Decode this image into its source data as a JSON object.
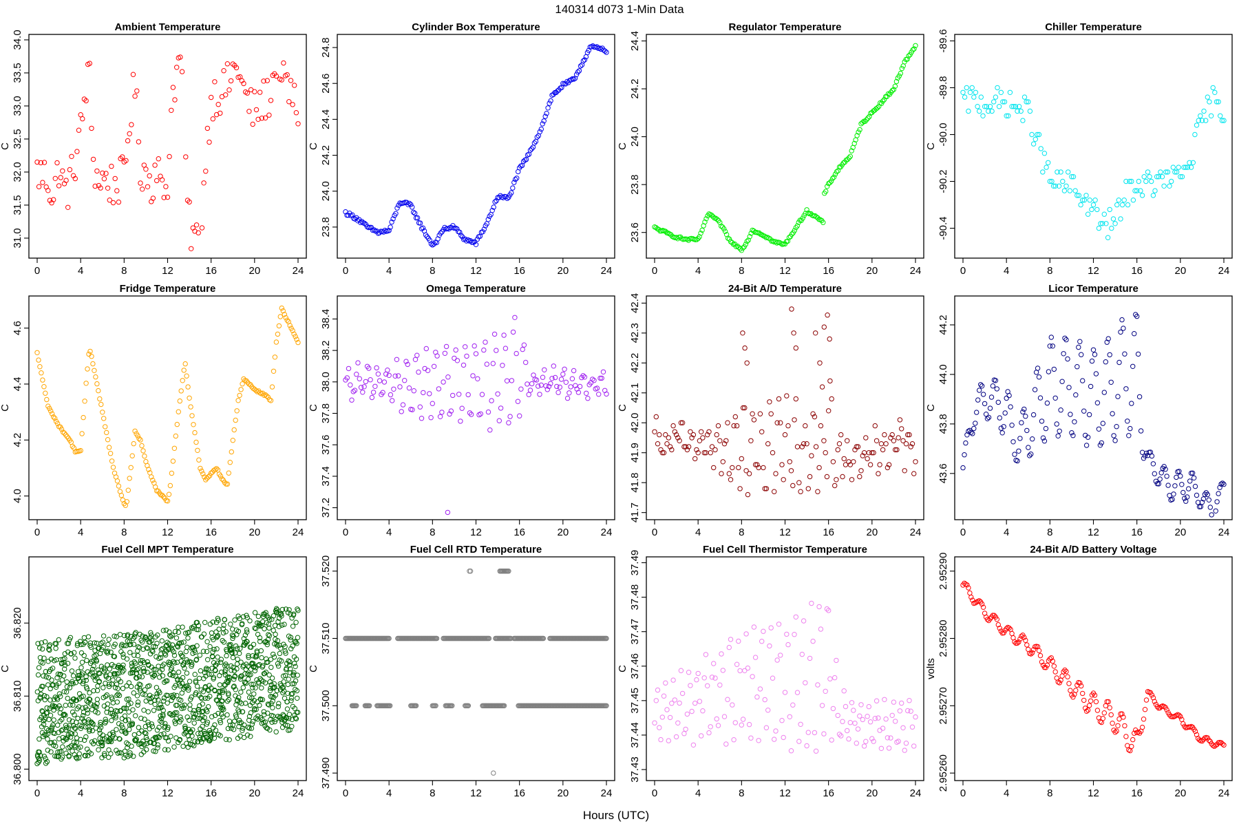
{
  "figure": {
    "title": "140314   d073   1-Min Data",
    "xlabel": "Hours (UTC)"
  },
  "chart_data": [
    {
      "type": "scatter",
      "title": "Ambient Temperature",
      "ylabel": "C",
      "color": "#ff0000",
      "xlim": [
        0,
        24
      ],
      "ylim": [
        30.76,
        34.02
      ],
      "xticks": [
        0,
        4,
        8,
        12,
        16,
        20,
        24
      ],
      "yticks": [
        31.0,
        31.5,
        32.0,
        32.5,
        33.0,
        33.5,
        34.0
      ],
      "ytick_labels": [
        "31.0",
        "31.5",
        "32.0",
        "32.5",
        "33.0",
        "33.5",
        "34.0"
      ],
      "x": [
        0,
        1,
        1.5,
        2,
        2.5,
        3,
        3.5,
        4,
        4.5,
        4.8,
        5.1,
        5.5,
        6,
        7,
        8,
        8.5,
        9,
        9.5,
        10,
        10.5,
        11,
        11.5,
        12,
        12.5,
        13,
        13.5,
        13.7,
        14,
        14.5,
        15,
        15.5,
        16,
        16.5,
        17,
        17.5,
        18,
        18.5,
        19,
        19.5,
        20,
        20.5,
        21,
        21.5,
        22,
        22.3,
        22.5,
        23,
        23.5,
        24
      ],
      "y": [
        32.0,
        31.9,
        31.6,
        32.1,
        31.7,
        31.8,
        32.2,
        32.6,
        33.3,
        33.5,
        32.3,
        31.9,
        31.9,
        31.8,
        31.9,
        32.8,
        33.3,
        32.1,
        32.0,
        31.8,
        32.2,
        31.6,
        31.9,
        33.3,
        33.6,
        33.7,
        31.8,
        31.2,
        31.0,
        30.9,
        32.2,
        33.1,
        33.2,
        33.2,
        33.3,
        33.5,
        33.6,
        33.2,
        33.0,
        32.9,
        33.0,
        33.1,
        33.2,
        33.7,
        33.8,
        33.3,
        33.3,
        33.1,
        32.9
      ],
      "noise": 0.35,
      "density": 6
    },
    {
      "type": "scatter",
      "title": "Cylinder Box Temperature",
      "ylabel": "C",
      "color": "#0000ee",
      "xlim": [
        0,
        24
      ],
      "ylim": [
        23.65,
        24.85
      ],
      "xticks": [
        0,
        4,
        8,
        12,
        16,
        20,
        24
      ],
      "yticks": [
        23.8,
        24.0,
        24.2,
        24.4,
        24.6,
        24.8
      ],
      "ytick_labels": [
        "23.8",
        "24.0",
        "24.2",
        "24.4",
        "24.6",
        "24.8"
      ],
      "x": [
        0,
        1,
        2,
        3,
        4,
        5,
        6,
        7,
        8,
        8.5,
        9,
        10,
        11,
        12,
        13,
        14,
        15,
        16,
        17,
        18,
        19,
        20,
        21,
        22,
        22.5,
        23,
        24
      ],
      "y": [
        23.88,
        23.85,
        23.8,
        23.77,
        23.78,
        23.94,
        23.92,
        23.8,
        23.7,
        23.73,
        23.79,
        23.8,
        23.73,
        23.71,
        23.82,
        23.97,
        23.96,
        24.12,
        24.22,
        24.35,
        24.53,
        24.59,
        24.62,
        24.74,
        24.8,
        24.8,
        24.78
      ],
      "noise": 0.01,
      "density": 8
    },
    {
      "type": "scatter",
      "title": "Regulator Temperature",
      "ylabel": "C",
      "color": "#00ee00",
      "xlim": [
        0,
        24
      ],
      "ylim": [
        23.51,
        24.41
      ],
      "xticks": [
        0,
        4,
        8,
        12,
        16,
        20,
        24
      ],
      "yticks": [
        23.6,
        23.8,
        24.0,
        24.2,
        24.4
      ],
      "ytick_labels": [
        "23.6",
        "23.8",
        "24.0",
        "24.2",
        "24.4"
      ],
      "x": [
        0,
        1,
        2,
        3,
        4,
        5,
        6,
        7,
        8,
        8.5,
        9,
        10,
        11,
        12,
        13,
        14,
        15,
        15.5,
        15.6,
        16,
        17,
        18,
        19,
        20,
        21,
        22,
        23,
        24
      ],
      "y": [
        23.62,
        23.6,
        23.58,
        23.57,
        23.57,
        23.68,
        23.64,
        23.56,
        23.53,
        23.56,
        23.61,
        23.59,
        23.56,
        23.55,
        23.62,
        23.69,
        23.66,
        23.64,
        23.76,
        23.8,
        23.87,
        23.92,
        24.05,
        24.1,
        24.15,
        24.2,
        24.31,
        24.38
      ],
      "noise": 0.005,
      "density": 8
    },
    {
      "type": "scatter",
      "title": "Chiller Temperature",
      "ylabel": "C",
      "color": "#00e5ee",
      "xlim": [
        0,
        24
      ],
      "ylim": [
        -90.51,
        -89.59
      ],
      "xticks": [
        0,
        4,
        8,
        12,
        16,
        20,
        24
      ],
      "yticks": [
        -90.4,
        -90.2,
        -90.0,
        -89.8,
        -89.6
      ],
      "ytick_labels": [
        "-90.4",
        "-90.2",
        "-90.0",
        "-89.8",
        "-89.6"
      ],
      "x": [
        0,
        2,
        4,
        6,
        7,
        8,
        10,
        12,
        13,
        14,
        15,
        16,
        18,
        20,
        21,
        22,
        23,
        24
      ],
      "y": [
        -89.85,
        -89.86,
        -89.87,
        -89.9,
        -90.05,
        -90.2,
        -90.22,
        -90.32,
        -90.4,
        -90.37,
        -90.25,
        -90.22,
        -90.2,
        -90.18,
        -90.1,
        -89.95,
        -89.85,
        -89.92
      ],
      "noise": 0.06,
      "density": 6,
      "quantum": 0.02
    },
    {
      "type": "scatter",
      "title": "Fridge Temperature",
      "ylabel": "C",
      "color": "#ffa500",
      "xlim": [
        0,
        24
      ],
      "ylim": [
        3.93,
        4.7
      ],
      "xticks": [
        0,
        4,
        8,
        12,
        16,
        20,
        24
      ],
      "yticks": [
        4.0,
        4.2,
        4.4,
        4.6
      ],
      "ytick_labels": [
        "4.0",
        "4.2",
        "4.4",
        "4.6"
      ],
      "x": [
        0,
        1,
        2,
        3,
        3.5,
        4,
        4.5,
        4.8,
        5,
        6,
        7,
        8,
        8.2,
        9,
        9.5,
        10,
        11,
        12,
        12.2,
        13,
        13.6,
        14,
        15,
        15.5,
        16,
        16.5,
        17,
        17.5,
        18,
        18.5,
        19,
        20,
        21,
        21.5,
        22,
        22.5,
        23,
        24
      ],
      "y": [
        4.51,
        4.32,
        4.25,
        4.2,
        4.16,
        4.16,
        4.4,
        4.53,
        4.5,
        4.3,
        4.1,
        3.97,
        3.96,
        4.23,
        4.2,
        4.12,
        4.02,
        3.98,
        4.02,
        4.3,
        4.48,
        4.35,
        4.1,
        4.06,
        4.08,
        4.1,
        4.06,
        4.04,
        4.2,
        4.34,
        4.42,
        4.38,
        4.36,
        4.34,
        4.55,
        4.67,
        4.63,
        4.55
      ],
      "noise": 0.003,
      "density": 8
    },
    {
      "type": "scatter",
      "title": "Omega Temperature",
      "ylabel": "C",
      "color": "#a020f0",
      "xlim": [
        0,
        24
      ],
      "ylim": [
        37.15,
        38.52
      ],
      "xticks": [
        0,
        4,
        8,
        12,
        16,
        20,
        24
      ],
      "yticks": [
        37.2,
        37.4,
        37.6,
        37.8,
        38.0,
        38.2,
        38.4
      ],
      "ytick_labels": [
        "37.2",
        "37.4",
        "37.6",
        "37.8",
        "38.0",
        "38.2",
        "38.4"
      ],
      "x": [
        0,
        2,
        4,
        6,
        8,
        10,
        12,
        14,
        15,
        15.5,
        16,
        17,
        20,
        24
      ],
      "y": [
        37.98,
        38.0,
        38.0,
        37.98,
        38.0,
        38.0,
        38.0,
        38.02,
        38.0,
        38.1,
        38.1,
        38.0,
        38.0,
        37.98
      ],
      "noise": 0.04,
      "density": 7,
      "oscillation": {
        "period": 0.9,
        "amp": [
          0.08,
          0.1,
          0.1,
          0.18,
          0.22,
          0.22,
          0.25,
          0.3,
          0.3,
          0.35,
          0.3,
          0.06,
          0.07,
          0.06
        ]
      },
      "outliers": {
        "x": [
          9.4
        ],
        "y": [
          37.17
        ]
      }
    },
    {
      "type": "scatter",
      "title": "24-Bit A/D Temperature",
      "ylabel": "C",
      "color": "#8b0000",
      "xlim": [
        0,
        24
      ],
      "ylim": [
        41.69,
        42.41
      ],
      "xticks": [
        0,
        4,
        8,
        12,
        16,
        20,
        24
      ],
      "yticks": [
        41.7,
        41.8,
        41.9,
        42.0,
        42.1,
        42.2,
        42.3,
        42.4
      ],
      "ytick_labels": [
        "41.7",
        "41.8",
        "41.9",
        "42.0",
        "42.1",
        "42.2",
        "42.3",
        "42.4"
      ],
      "x": [
        0,
        2,
        4,
        6,
        8,
        10,
        12,
        14,
        16,
        17,
        20,
        24
      ],
      "y": [
        41.92,
        41.94,
        41.94,
        41.9,
        41.92,
        41.9,
        41.92,
        41.9,
        41.98,
        41.88,
        41.9,
        41.92
      ],
      "noise": 0.06,
      "density": 7,
      "quantum": 0.01,
      "oscillation": {
        "period": 0.8,
        "amp": [
          0.04,
          0.05,
          0.05,
          0.08,
          0.12,
          0.1,
          0.14,
          0.1,
          0.16,
          0.05,
          0.06,
          0.05
        ]
      },
      "outliers": {
        "x": [
          8.1,
          8.3,
          8.5,
          12.6,
          12.8,
          13.0,
          14.8,
          15.2,
          15.6,
          15.9,
          16.1
        ],
        "y": [
          42.3,
          42.25,
          42.2,
          42.38,
          42.3,
          42.25,
          42.3,
          42.2,
          42.32,
          42.36,
          42.28
        ]
      }
    },
    {
      "type": "scatter",
      "title": "Licor Temperature",
      "ylabel": "C",
      "color": "#000080",
      "xlim": [
        0,
        24
      ],
      "ylim": [
        43.43,
        44.3
      ],
      "xticks": [
        0,
        4,
        8,
        12,
        16,
        20,
        24
      ],
      "yticks": [
        43.6,
        43.8,
        44.0,
        44.2
      ],
      "ytick_labels": [
        "43.6",
        "43.8",
        "44.0",
        "44.2"
      ],
      "x": [
        0,
        1,
        2,
        3,
        4,
        5,
        6,
        8,
        10,
        12,
        14,
        15,
        16,
        17,
        18,
        19,
        20,
        21,
        22,
        23,
        24
      ],
      "y": [
        43.62,
        43.85,
        43.9,
        43.9,
        43.85,
        43.7,
        43.8,
        43.95,
        43.95,
        43.9,
        43.95,
        44.0,
        44.0,
        43.65,
        43.6,
        43.55,
        43.55,
        43.55,
        43.5,
        43.45,
        43.55
      ],
      "noise": 0.003,
      "density": 8,
      "oscillation": {
        "period": 1.3,
        "amp": [
          0.04,
          0.07,
          0.08,
          0.08,
          0.12,
          0.06,
          0.14,
          0.2,
          0.2,
          0.2,
          0.22,
          0.25,
          0.25,
          0.05,
          0.05,
          0.06,
          0.06,
          0.06,
          0.04,
          0.04,
          0.03
        ]
      }
    },
    {
      "type": "scatter",
      "title": "Fuel Cell MPT Temperature",
      "ylabel": "C",
      "color": "#006400",
      "xlim": [
        0,
        24
      ],
      "ylim": [
        36.799,
        36.8285
      ],
      "xticks": [
        0,
        4,
        8,
        12,
        16,
        20,
        24
      ],
      "yticks": [
        36.8,
        36.81,
        36.82
      ],
      "ytick_labels": [
        "36.800",
        "36.810",
        "36.820"
      ],
      "x": [
        0,
        4,
        8,
        12,
        16,
        20,
        24
      ],
      "y": [
        36.809,
        36.81,
        36.81,
        36.811,
        36.812,
        36.813,
        36.814
      ],
      "noise": 0.0085,
      "density": 60
    },
    {
      "type": "scatter",
      "title": "Fuel Cell RTD Temperature",
      "ylabel": "C",
      "color": "#808080",
      "xlim": [
        0,
        24
      ],
      "ylim": [
        37.4895,
        37.5215
      ],
      "xticks": [
        0,
        4,
        8,
        12,
        16,
        20,
        24
      ],
      "yticks": [
        37.49,
        37.5,
        37.51,
        37.52
      ],
      "ytick_labels": [
        "37.490",
        "37.500",
        "37.510",
        "37.520"
      ],
      "levels": [
        37.5,
        37.51
      ],
      "level_runs": [
        {
          "y": 37.51,
          "segments": [
            [
              0,
              4
            ],
            [
              4.8,
              8.4
            ],
            [
              9.0,
              13.2
            ],
            [
              13.8,
              15.2
            ],
            [
              15.5,
              18.2
            ],
            [
              18.8,
              24
            ]
          ]
        },
        {
          "y": 37.5,
          "segments": [
            [
              0.6,
              1.0
            ],
            [
              1.8,
              2.2
            ],
            [
              2.9,
              4.1
            ],
            [
              6.0,
              6.5
            ],
            [
              8.0,
              8.3
            ],
            [
              9.2,
              9.8
            ],
            [
              11.0,
              11.3
            ],
            [
              12.6,
              14.6
            ],
            [
              15.9,
              24
            ]
          ]
        },
        {
          "y": 37.52,
          "segments": [
            [
              11.4,
              11.5
            ],
            [
              14.2,
              15.0
            ]
          ]
        }
      ],
      "outliers": {
        "x": [
          13.6
        ],
        "y": [
          37.49
        ]
      }
    },
    {
      "type": "scatter",
      "title": "Fuel Cell Thermistor Temperature",
      "ylabel": "C",
      "color": "#ee82ee",
      "xlim": [
        0,
        24
      ],
      "ylim": [
        37.428,
        37.4905
      ],
      "xticks": [
        0,
        4,
        8,
        12,
        16,
        20,
        24
      ],
      "yticks": [
        37.43,
        37.44,
        37.45,
        37.46,
        37.47,
        37.48,
        37.49
      ],
      "ytick_labels": [
        "37.43",
        "37.44",
        "37.45",
        "37.46",
        "37.47",
        "37.48",
        "37.49"
      ],
      "x": [
        0,
        2,
        4,
        6,
        8,
        10,
        12,
        14,
        16,
        17,
        20,
        24
      ],
      "y": [
        37.446,
        37.448,
        37.45,
        37.452,
        37.455,
        37.455,
        37.455,
        37.455,
        37.46,
        37.445,
        37.443,
        37.443
      ],
      "noise": 0.003,
      "density": 7,
      "oscillation": {
        "period": 0.75,
        "amp": [
          0.006,
          0.008,
          0.01,
          0.012,
          0.015,
          0.015,
          0.018,
          0.02,
          0.022,
          0.005,
          0.006,
          0.005
        ]
      }
    },
    {
      "type": "scatter",
      "title": "24-Bit A/D Battery Voltage",
      "ylabel": "volts",
      "color": "#ff0000",
      "xlim": [
        0,
        24
      ],
      "ylim": [
        2.952595,
        2.952915
      ],
      "xticks": [
        0,
        4,
        8,
        12,
        16,
        20,
        24
      ],
      "yticks": [
        2.9526,
        2.9527,
        2.9528,
        2.9529
      ],
      "ytick_labels": [
        "2.95260",
        "2.95270",
        "2.95280",
        "2.95290"
      ],
      "x": [
        0,
        2,
        4,
        6,
        8,
        10,
        12,
        14,
        16,
        17,
        18,
        20,
        22,
        24
      ],
      "y": [
        2.95288,
        2.95284,
        2.95281,
        2.95279,
        2.95276,
        2.95273,
        2.9527,
        2.95268,
        2.95264,
        2.95272,
        2.9527,
        2.95268,
        2.95265,
        2.95264
      ],
      "noise": 1e-06,
      "density": 8,
      "oscillation": {
        "period": 1.3,
        "amp": [
          6e-06,
          8e-06,
          8e-06,
          1e-05,
          1.2e-05,
          1.5e-05,
          1.8e-05,
          2e-05,
          2.2e-05,
          4e-06,
          4e-06,
          5e-06,
          5e-06,
          4e-06
        ]
      }
    }
  ]
}
